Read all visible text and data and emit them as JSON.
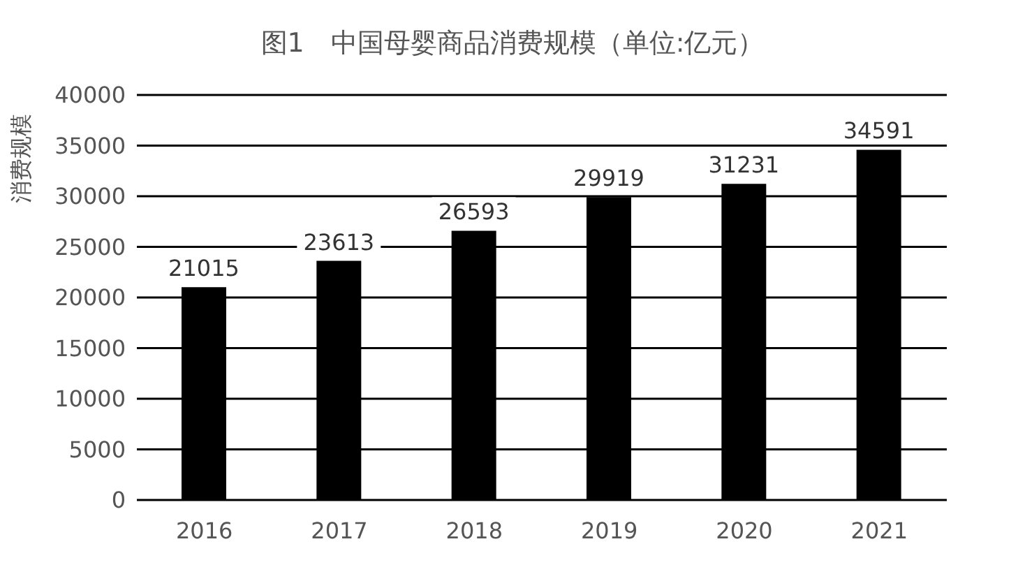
{
  "chart_data": {
    "type": "bar",
    "title": "图1　中国母婴商品消费规模（单位:亿元）",
    "ylabel": "消费规模",
    "categories": [
      "2016",
      "2017",
      "2018",
      "2019",
      "2020",
      "2021"
    ],
    "values": [
      21015,
      23613,
      26593,
      29919,
      31231,
      34591
    ],
    "color": "#000000",
    "ylim": [
      0,
      40000
    ],
    "yticks": [
      0,
      5000,
      10000,
      15000,
      20000,
      25000,
      30000,
      35000,
      40000
    ],
    "grid": "y",
    "data_labels": true
  }
}
